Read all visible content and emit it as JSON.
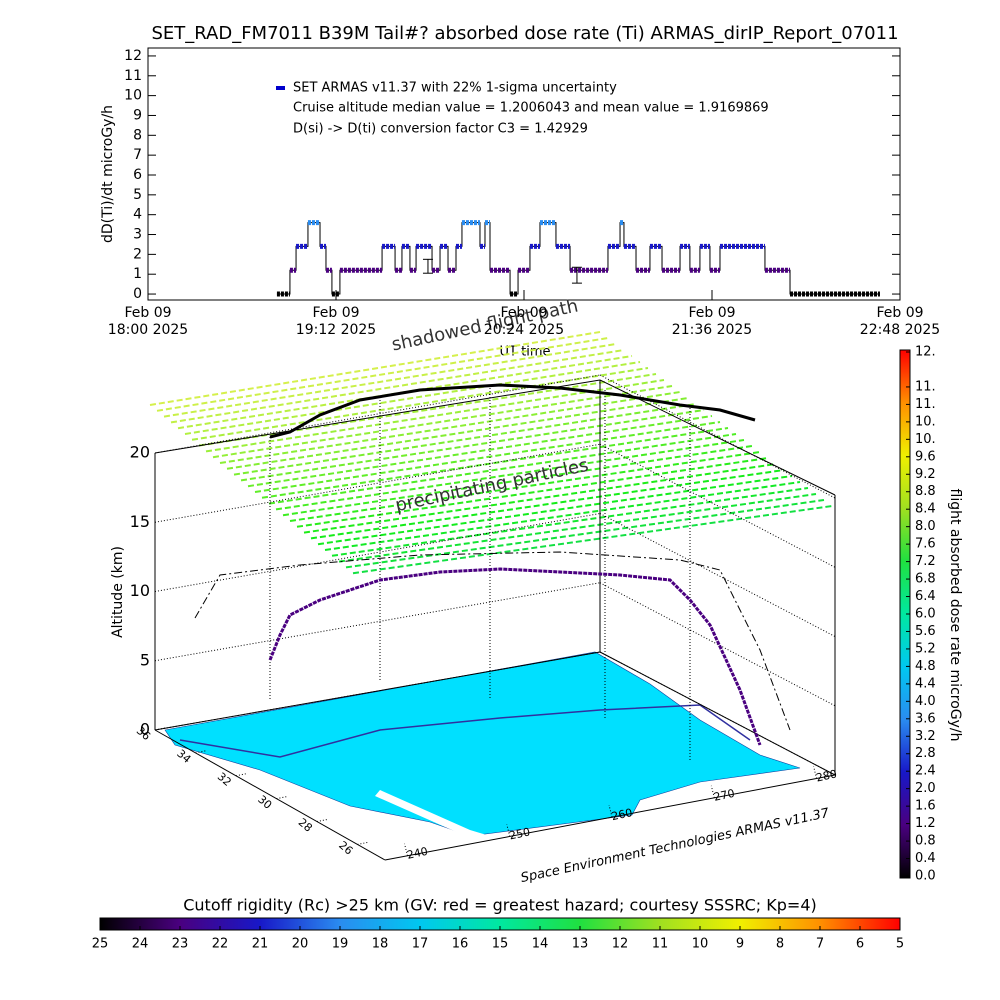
{
  "chart_data": [
    {
      "type": "line",
      "title": "SET_RAD_FM7011  B39M Tail#? absorbed dose rate (Ti) ARMAS_dirIP_Report_07011",
      "y_label": "dD(Ti)/dt microGy/h",
      "x_label": "UT time",
      "xlim": [
        18,
        22.8
      ],
      "ylim": [
        -0.3,
        12.4
      ],
      "xticks": [
        {
          "value": 18,
          "label": [
            "Feb 09",
            "18:00 2025"
          ]
        },
        {
          "value": 19.2,
          "label": [
            "Feb 09",
            "19:12 2025"
          ]
        },
        {
          "value": 20.4,
          "label": [
            "Feb 09",
            "20:24 2025"
          ]
        },
        {
          "value": 21.6,
          "label": [
            "Feb 09",
            "21:36 2025"
          ]
        },
        {
          "value": 22.8,
          "label": [
            "Feb 09",
            "22:48 2025"
          ]
        }
      ],
      "yticks": [
        0,
        1,
        2,
        3,
        4,
        5,
        6,
        7,
        8,
        9,
        10,
        11,
        12
      ],
      "series": [
        {
          "name": "SET ARMAS v11.37 with 22% 1-sigma uncertainty",
          "color": "#0000cc",
          "line_color": "#000000",
          "x": [
            18.823,
            18.906,
            18.906,
            18.945,
            18.945,
            19.021,
            19.021,
            19.098,
            19.098,
            19.136,
            19.136,
            19.174,
            19.174,
            19.225,
            19.225,
            19.494,
            19.494,
            19.577,
            19.577,
            19.621,
            19.621,
            19.672,
            19.672,
            19.711,
            19.711,
            19.813,
            19.813,
            19.864,
            19.864,
            19.915,
            19.915,
            19.966,
            19.966,
            20.004,
            20.004,
            20.119,
            20.119,
            20.151,
            20.151,
            20.183,
            20.183,
            20.311,
            20.311,
            20.362,
            20.362,
            20.438,
            20.438,
            20.502,
            20.502,
            20.604,
            20.604,
            20.694,
            20.694,
            20.936,
            20.936,
            21.013,
            21.013,
            21.038,
            21.038,
            21.115,
            21.115,
            21.204,
            21.204,
            21.281,
            21.281,
            21.396,
            21.396,
            21.459,
            21.459,
            21.523,
            21.523,
            21.587,
            21.587,
            21.651,
            21.651,
            21.938,
            21.938,
            22.098,
            22.098,
            22.672
          ],
          "values": [
            0,
            0,
            1.2,
            1.2,
            2.4,
            2.4,
            3.6,
            3.6,
            2.4,
            2.4,
            1.2,
            1.2,
            0,
            0,
            1.2,
            1.2,
            2.4,
            2.4,
            1.2,
            1.2,
            2.4,
            2.4,
            1.2,
            1.2,
            2.4,
            2.4,
            1.2,
            1.2,
            2.4,
            2.4,
            1.2,
            1.2,
            2.4,
            2.4,
            3.6,
            3.6,
            2.4,
            2.4,
            3.6,
            3.6,
            1.2,
            1.2,
            0,
            0,
            1.2,
            1.2,
            2.4,
            2.4,
            3.6,
            3.6,
            2.4,
            2.4,
            1.2,
            1.2,
            2.4,
            2.4,
            3.6,
            3.6,
            2.4,
            2.4,
            1.2,
            1.2,
            2.4,
            2.4,
            1.2,
            1.2,
            2.4,
            2.4,
            1.2,
            1.2,
            2.4,
            2.4,
            1.2,
            1.2,
            2.4,
            2.4,
            1.2,
            1.2,
            0,
            0
          ]
        }
      ],
      "error_bars": [
        {
          "x": 19.787,
          "value": 1.4,
          "error": 0.35
        },
        {
          "x": 20.738,
          "value": 0.95,
          "error": 0.4
        }
      ],
      "annotations": [
        "Cruise altitude median value = 1.2006043 and mean value = 1.9169869",
        "D(si) -> D(ti) conversion factor C3 = 1.42929"
      ]
    },
    {
      "type": "surface3d",
      "annotations": [
        "shadowed flight path",
        "precipitating particles"
      ],
      "z_label": "Altitude (km)",
      "zlim": [
        0,
        20
      ],
      "zticks": [
        0,
        5,
        10,
        15,
        20
      ],
      "lonlim": [
        237.8,
        281.8
      ],
      "lonticks": [
        240,
        250,
        260,
        270,
        280
      ],
      "latlim": [
        36,
        24.64
      ],
      "latticks": [
        36,
        34,
        32,
        30,
        28,
        26
      ],
      "credit": "Space Environment Technologies ARMAS v11.37"
    },
    {
      "type": "colorbar",
      "orientation": "vertical",
      "label": "flight absorbed dose rate microGy/h",
      "lim": [
        0,
        12
      ],
      "ticks": [
        {
          "value": 0,
          "label": "0.0"
        },
        0.4,
        0.8,
        1.2,
        1.6,
        {
          "value": 2,
          "label": "2.0"
        },
        2.4,
        2.8,
        3.2,
        3.6,
        {
          "value": 4,
          "label": "4.0"
        },
        4.4,
        4.8,
        5.2,
        5.6,
        {
          "value": 6,
          "label": "6.0"
        },
        6.4,
        6.8,
        7.2,
        7.6,
        {
          "value": 8,
          "label": "8.0"
        },
        8.4,
        8.8,
        9.2,
        9.6,
        {
          "value": 10,
          "label": "10."
        },
        {
          "value": 10.4,
          "label": "10."
        },
        {
          "value": 10.8,
          "label": "11."
        },
        {
          "value": 11.2,
          "label": "11."
        },
        {
          "value": 12,
          "label": "12."
        }
      ],
      "colormap": [
        "#000000",
        "#4a0080",
        "#1818c8",
        "#2a8cf0",
        "#00c8f0",
        "#00e8a0",
        "#20e040",
        "#a0e020",
        "#f0f000",
        "#ff9000",
        "#ff0000"
      ]
    },
    {
      "type": "colorbar",
      "orientation": "horizontal",
      "title": "Cutoff rigidity (Rc) >25 km (GV: red = greatest hazard; courtesy SSSRC; Kp=4)",
      "lim": [
        25,
        5
      ],
      "ticks": [
        25,
        24,
        23,
        22,
        21,
        20,
        19,
        18,
        17,
        16,
        15,
        14,
        13,
        12,
        11,
        10,
        9,
        8,
        7,
        6,
        5
      ],
      "colormap": [
        "#000000",
        "#4a0080",
        "#1818c8",
        "#2a8cf0",
        "#00c8f0",
        "#00e8a0",
        "#20e040",
        "#a0e020",
        "#f0f000",
        "#ff9000",
        "#ff0000"
      ]
    }
  ]
}
